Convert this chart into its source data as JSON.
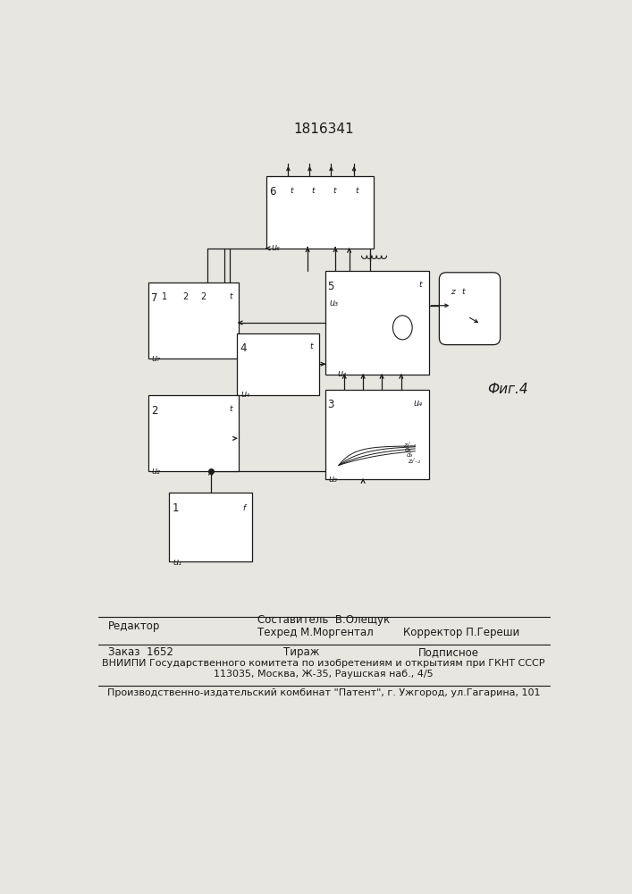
{
  "title": "1816341",
  "fig_label": "Фиг.4",
  "bg_color": "#e8e6e0",
  "line_color": "#1a1a1a",
  "block6": [
    270,
    100,
    155,
    105
  ],
  "block7": [
    100,
    255,
    130,
    110
  ],
  "block5": [
    355,
    238,
    150,
    150
  ],
  "block4": [
    228,
    328,
    118,
    90
  ],
  "block2": [
    100,
    418,
    130,
    110
  ],
  "block3": [
    355,
    410,
    150,
    130
  ],
  "block1": [
    130,
    560,
    120,
    100
  ]
}
